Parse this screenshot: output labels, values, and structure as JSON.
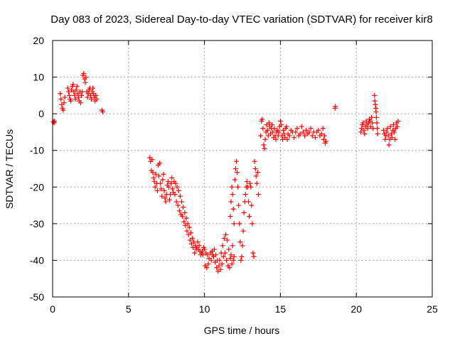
{
  "chart_data": {
    "type": "scatter",
    "title": "Day 083 of 2023, Sidereal Day-to-day VTEC variation (SDTVAR) for receiver kir8",
    "xlabel": "GPS time / hours",
    "ylabel": "SDTVAR / TECUs",
    "xlim": [
      0,
      25
    ],
    "ylim": [
      -50,
      20
    ],
    "xticks": [
      0,
      5,
      10,
      15,
      20,
      25
    ],
    "yticks": [
      -50,
      -40,
      -30,
      -20,
      -10,
      0,
      10,
      20
    ],
    "xtick_labels": [
      "0",
      "5",
      "10",
      "15",
      "20",
      "25"
    ],
    "ytick_labels": [
      "-50",
      "-40",
      "-30",
      "-20",
      "-10",
      "0",
      "10",
      "20"
    ],
    "grid": true,
    "marker": "+",
    "color": "#ff0000",
    "series": [
      {
        "name": "SDTVAR",
        "points": [
          [
            0.05,
            -2.2
          ],
          [
            0.1,
            -2.5
          ],
          [
            0.12,
            -2.0
          ],
          [
            0.5,
            5.5
          ],
          [
            0.55,
            4.0
          ],
          [
            0.6,
            2.5
          ],
          [
            0.65,
            1.5
          ],
          [
            0.7,
            1.0
          ],
          [
            0.75,
            3.0
          ],
          [
            0.8,
            4.5
          ],
          [
            1.0,
            7.0
          ],
          [
            1.05,
            6.0
          ],
          [
            1.1,
            5.0
          ],
          [
            1.15,
            4.0
          ],
          [
            1.2,
            3.5
          ],
          [
            1.25,
            6.5
          ],
          [
            1.3,
            7.5
          ],
          [
            1.35,
            8.0
          ],
          [
            1.4,
            6.0
          ],
          [
            1.45,
            5.0
          ],
          [
            1.5,
            4.0
          ],
          [
            1.55,
            6.5
          ],
          [
            1.6,
            7.5
          ],
          [
            1.65,
            5.5
          ],
          [
            1.7,
            4.5
          ],
          [
            1.75,
            3.5
          ],
          [
            1.8,
            6.0
          ],
          [
            1.85,
            3.0
          ],
          [
            1.9,
            5.0
          ],
          [
            1.95,
            6.0
          ],
          [
            2.0,
            10.5
          ],
          [
            2.05,
            11.0
          ],
          [
            2.1,
            9.5
          ],
          [
            2.15,
            8.5
          ],
          [
            2.2,
            10.0
          ],
          [
            2.25,
            6.0
          ],
          [
            2.3,
            4.5
          ],
          [
            2.35,
            5.5
          ],
          [
            2.4,
            6.5
          ],
          [
            2.45,
            7.0
          ],
          [
            2.5,
            5.0
          ],
          [
            2.55,
            4.0
          ],
          [
            2.6,
            6.0
          ],
          [
            2.65,
            7.0
          ],
          [
            2.7,
            5.5
          ],
          [
            2.75,
            4.5
          ],
          [
            2.8,
            3.5
          ],
          [
            2.85,
            5.0
          ],
          [
            2.9,
            4.0
          ],
          [
            3.25,
            1.0
          ],
          [
            3.3,
            0.5
          ],
          [
            6.4,
            -12.0
          ],
          [
            6.45,
            -13.0
          ],
          [
            6.5,
            -15.5
          ],
          [
            6.55,
            -12.5
          ],
          [
            6.6,
            -16.0
          ],
          [
            6.65,
            -17.5
          ],
          [
            6.7,
            -18.5
          ],
          [
            6.75,
            -20.0
          ],
          [
            6.8,
            -16.5
          ],
          [
            6.85,
            -19.0
          ],
          [
            6.9,
            -21.0
          ],
          [
            6.95,
            -14.0
          ],
          [
            7.0,
            -17.0
          ],
          [
            7.05,
            -13.5
          ],
          [
            7.1,
            -19.0
          ],
          [
            7.15,
            -20.5
          ],
          [
            7.2,
            -22.5
          ],
          [
            7.25,
            -18.0
          ],
          [
            7.3,
            -16.5
          ],
          [
            7.35,
            -21.0
          ],
          [
            7.4,
            -23.0
          ],
          [
            7.45,
            -24.0
          ],
          [
            7.5,
            -22.0
          ],
          [
            7.55,
            -19.5
          ],
          [
            7.6,
            -18.5
          ],
          [
            7.65,
            -20.0
          ],
          [
            7.7,
            -23.5
          ],
          [
            7.75,
            -22.0
          ],
          [
            7.8,
            -19.0
          ],
          [
            7.85,
            -17.5
          ],
          [
            7.9,
            -20.5
          ],
          [
            7.95,
            -21.5
          ],
          [
            8.0,
            -18.5
          ],
          [
            8.1,
            -19.0
          ],
          [
            8.2,
            -20.0
          ],
          [
            8.3,
            -21.0
          ],
          [
            8.4,
            -22.5
          ],
          [
            8.5,
            -24.0
          ],
          [
            8.6,
            -25.5
          ],
          [
            8.7,
            -27.0
          ],
          [
            8.8,
            -28.5
          ],
          [
            8.9,
            -30.0
          ],
          [
            9.0,
            -31.0
          ],
          [
            9.1,
            -32.5
          ],
          [
            9.2,
            -34.0
          ],
          [
            9.3,
            -35.0
          ],
          [
            9.4,
            -36.0
          ],
          [
            9.5,
            -36.5
          ],
          [
            9.6,
            -37.0
          ],
          [
            9.7,
            -37.5
          ],
          [
            9.8,
            -38.0
          ],
          [
            9.9,
            -38.5
          ],
          [
            8.05,
            -22.0
          ],
          [
            8.15,
            -24.0
          ],
          [
            8.25,
            -25.0
          ],
          [
            8.35,
            -26.5
          ],
          [
            8.45,
            -27.5
          ],
          [
            8.55,
            -28.0
          ],
          [
            8.65,
            -29.5
          ],
          [
            8.75,
            -30.5
          ],
          [
            8.85,
            -32.0
          ],
          [
            8.95,
            -33.0
          ],
          [
            9.05,
            -34.5
          ],
          [
            9.15,
            -35.5
          ],
          [
            9.25,
            -36.5
          ],
          [
            9.35,
            -38.0
          ],
          [
            9.45,
            -37.0
          ],
          [
            9.55,
            -35.0
          ],
          [
            9.65,
            -36.0
          ],
          [
            9.75,
            -38.5
          ],
          [
            9.85,
            -37.5
          ],
          [
            9.95,
            -36.5
          ],
          [
            10.0,
            -37.0
          ],
          [
            10.1,
            -38.0
          ],
          [
            10.2,
            -38.5
          ],
          [
            10.3,
            -39.5
          ],
          [
            10.4,
            -38.0
          ],
          [
            10.5,
            -37.5
          ],
          [
            10.6,
            -39.0
          ],
          [
            10.7,
            -40.5
          ],
          [
            10.8,
            -42.0
          ],
          [
            10.9,
            -43.0
          ],
          [
            11.0,
            -40.0
          ],
          [
            11.1,
            -38.0
          ],
          [
            11.2,
            -36.0
          ],
          [
            11.3,
            -34.0
          ],
          [
            11.4,
            -33.0
          ],
          [
            11.5,
            -34.5
          ],
          [
            11.6,
            -37.0
          ],
          [
            11.7,
            -39.5
          ],
          [
            11.8,
            -41.0
          ],
          [
            11.9,
            -40.0
          ],
          [
            10.05,
            -41.5
          ],
          [
            10.15,
            -42.0
          ],
          [
            10.25,
            -41.0
          ],
          [
            10.45,
            -40.0
          ],
          [
            10.55,
            -38.5
          ],
          [
            10.65,
            -37.0
          ],
          [
            10.75,
            -38.5
          ],
          [
            10.85,
            -40.0
          ],
          [
            10.95,
            -41.5
          ],
          [
            11.05,
            -42.5
          ],
          [
            11.15,
            -41.0
          ],
          [
            11.25,
            -39.0
          ],
          [
            11.35,
            -38.0
          ],
          [
            11.45,
            -40.0
          ],
          [
            11.55,
            -41.5
          ],
          [
            11.65,
            -42.0
          ],
          [
            11.75,
            -38.5
          ],
          [
            11.85,
            -36.0
          ],
          [
            11.95,
            -39.0
          ],
          [
            11.7,
            -28.0
          ],
          [
            11.75,
            -24.0
          ],
          [
            11.8,
            -20.0
          ],
          [
            11.85,
            -22.0
          ],
          [
            11.9,
            -26.0
          ],
          [
            11.95,
            -30.0
          ],
          [
            12.0,
            -18.0
          ],
          [
            12.05,
            -15.0
          ],
          [
            12.1,
            -13.0
          ],
          [
            12.15,
            -16.0
          ],
          [
            12.2,
            -20.0
          ],
          [
            12.25,
            -25.0
          ],
          [
            12.3,
            -30.0
          ],
          [
            12.35,
            -35.0
          ],
          [
            12.4,
            -40.0
          ],
          [
            12.45,
            -39.0
          ],
          [
            12.5,
            -36.0
          ],
          [
            12.55,
            -32.0
          ],
          [
            12.6,
            -27.0
          ],
          [
            12.65,
            -24.0
          ],
          [
            12.7,
            -22.0
          ],
          [
            12.75,
            -20.0
          ],
          [
            12.8,
            -18.5
          ],
          [
            12.85,
            -20.0
          ],
          [
            12.9,
            -24.0
          ],
          [
            12.95,
            -28.0
          ],
          [
            13.0,
            -19.0
          ],
          [
            13.05,
            -20.0
          ],
          [
            13.1,
            -25.0
          ],
          [
            13.15,
            -30.0
          ],
          [
            13.2,
            -38.0
          ],
          [
            13.25,
            -39.0
          ],
          [
            13.3,
            -13.0
          ],
          [
            13.35,
            -15.0
          ],
          [
            13.4,
            -17.0
          ],
          [
            13.45,
            -19.0
          ],
          [
            13.5,
            -16.0
          ],
          [
            13.55,
            -22.0
          ],
          [
            13.7,
            -6.0
          ],
          [
            13.75,
            -2.0
          ],
          [
            13.8,
            -1.5
          ],
          [
            13.85,
            -4.0
          ],
          [
            13.9,
            -8.5
          ],
          [
            13.95,
            -9.5
          ],
          [
            14.0,
            -7.0
          ],
          [
            14.05,
            -5.0
          ],
          [
            14.1,
            -3.0
          ],
          [
            14.15,
            -4.5
          ],
          [
            14.2,
            -6.0
          ],
          [
            14.25,
            -2.5
          ],
          [
            14.3,
            -3.5
          ],
          [
            14.35,
            -5.5
          ],
          [
            14.4,
            -4.0
          ],
          [
            14.45,
            -3.0
          ],
          [
            14.5,
            -5.0
          ],
          [
            14.55,
            -6.5
          ],
          [
            14.6,
            -4.0
          ],
          [
            14.65,
            -6.0
          ],
          [
            14.7,
            -7.0
          ],
          [
            14.75,
            -5.0
          ],
          [
            14.8,
            -4.5
          ],
          [
            14.85,
            -6.0
          ],
          [
            14.9,
            -5.0
          ],
          [
            14.95,
            -3.5
          ],
          [
            15.0,
            -2.0
          ],
          [
            15.05,
            -3.0
          ],
          [
            15.1,
            -6.0
          ],
          [
            15.15,
            -7.0
          ],
          [
            15.2,
            -4.5
          ],
          [
            15.25,
            -5.5
          ],
          [
            15.3,
            -6.5
          ],
          [
            15.35,
            -4.0
          ],
          [
            15.4,
            -3.5
          ],
          [
            15.45,
            -7.0
          ],
          [
            15.5,
            -5.5
          ],
          [
            15.6,
            -6.0
          ],
          [
            15.7,
            -4.5
          ],
          [
            15.8,
            -5.0
          ],
          [
            15.9,
            -6.5
          ],
          [
            16.0,
            -5.0
          ],
          [
            16.1,
            -4.0
          ],
          [
            16.2,
            -6.0
          ],
          [
            16.3,
            -5.5
          ],
          [
            16.4,
            -3.5
          ],
          [
            16.5,
            -5.0
          ],
          [
            16.6,
            -6.0
          ],
          [
            16.7,
            -4.5
          ],
          [
            16.8,
            -5.5
          ],
          [
            16.9,
            -5.0
          ],
          [
            17.0,
            -4.0
          ],
          [
            17.1,
            -6.0
          ],
          [
            17.2,
            -5.0
          ],
          [
            17.3,
            -6.5
          ],
          [
            17.4,
            -5.0
          ],
          [
            17.5,
            -4.5
          ],
          [
            17.6,
            -6.0
          ],
          [
            17.7,
            -5.5
          ],
          [
            17.8,
            -4.0
          ],
          [
            17.85,
            -7.0
          ],
          [
            17.9,
            -6.0
          ],
          [
            17.95,
            -8.0
          ],
          [
            18.0,
            -7.5
          ],
          [
            18.6,
            1.5
          ],
          [
            18.62,
            2.0
          ],
          [
            20.3,
            -5.0
          ],
          [
            20.35,
            -4.0
          ],
          [
            20.4,
            -3.0
          ],
          [
            20.45,
            -2.5
          ],
          [
            20.5,
            -4.5
          ],
          [
            20.55,
            -5.5
          ],
          [
            20.6,
            -3.5
          ],
          [
            20.65,
            -2.0
          ],
          [
            20.7,
            -3.0
          ],
          [
            20.75,
            -4.0
          ],
          [
            20.8,
            -2.5
          ],
          [
            20.85,
            -1.5
          ],
          [
            20.9,
            -2.0
          ],
          [
            20.95,
            -3.5
          ],
          [
            21.0,
            -1.0
          ],
          [
            21.05,
            -2.5
          ],
          [
            21.1,
            -4.0
          ],
          [
            21.2,
            5.0
          ],
          [
            21.22,
            3.5
          ],
          [
            21.25,
            2.5
          ],
          [
            21.28,
            1.5
          ],
          [
            21.3,
            0.5
          ],
          [
            21.32,
            -1.0
          ],
          [
            21.35,
            -2.5
          ],
          [
            21.38,
            -4.0
          ],
          [
            21.4,
            -5.5
          ],
          [
            21.8,
            -4.5
          ],
          [
            21.85,
            -5.5
          ],
          [
            21.9,
            -7.0
          ],
          [
            21.95,
            -6.0
          ],
          [
            22.0,
            -5.0
          ],
          [
            22.05,
            -4.0
          ],
          [
            22.1,
            -6.0
          ],
          [
            22.15,
            -8.5
          ],
          [
            22.2,
            -7.0
          ],
          [
            22.25,
            -3.5
          ],
          [
            22.3,
            -5.5
          ],
          [
            22.35,
            -6.5
          ],
          [
            22.4,
            -4.5
          ],
          [
            22.45,
            -3.0
          ],
          [
            22.5,
            -5.0
          ],
          [
            22.55,
            -7.0
          ],
          [
            22.6,
            -4.0
          ],
          [
            22.65,
            -2.5
          ],
          [
            22.7,
            -3.5
          ],
          [
            22.75,
            -2.0
          ]
        ]
      }
    ]
  }
}
